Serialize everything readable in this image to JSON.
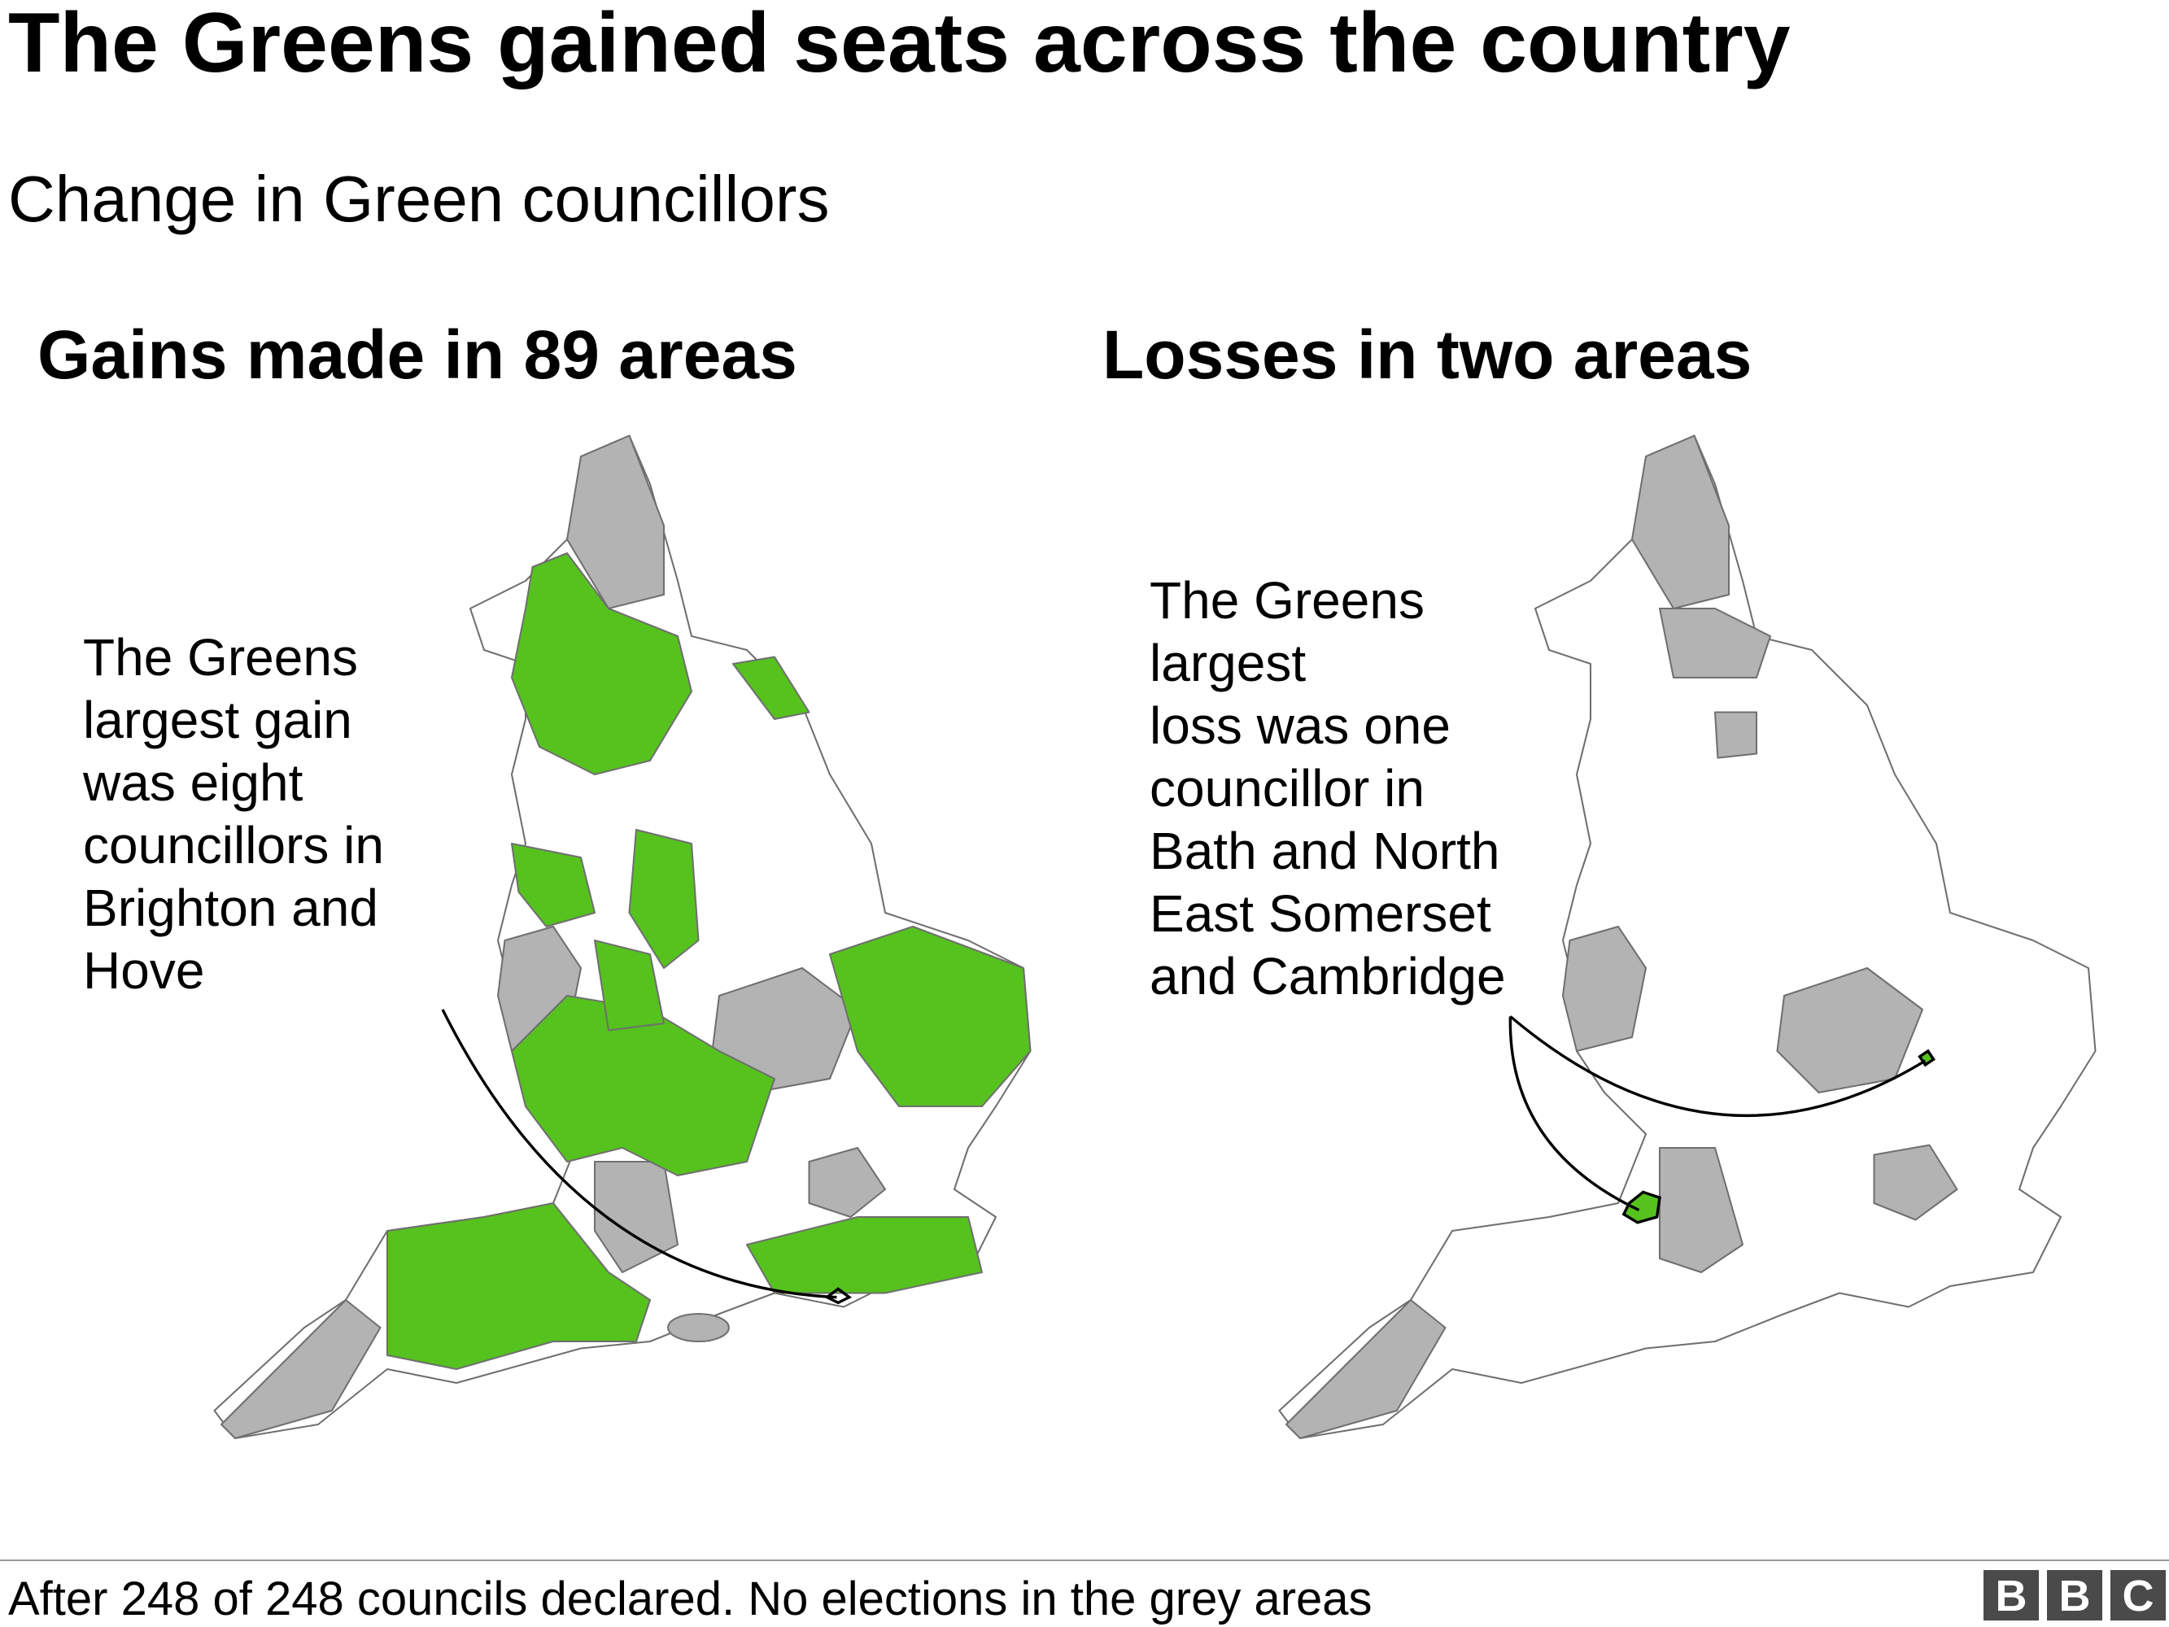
{
  "header": {
    "title": "The Greens gained seats across the country",
    "subtitle": "Change in Green councillors"
  },
  "panels": [
    {
      "heading": "Gains made in 89 areas",
      "annotation": [
        "The Greens",
        "largest gain",
        "was eight",
        "councillors in",
        "Brighton and",
        "Hove"
      ]
    },
    {
      "heading": "Losses in two areas",
      "annotation": [
        "The Greens",
        "largest",
        "loss was one",
        "councillor in",
        "Bath and North",
        "East Somerset",
        "and Cambridge"
      ]
    }
  ],
  "footer": {
    "note": "After 248 of 248 councils declared. No elections in the grey areas",
    "logo": [
      "B",
      "B",
      "C"
    ]
  }
}
